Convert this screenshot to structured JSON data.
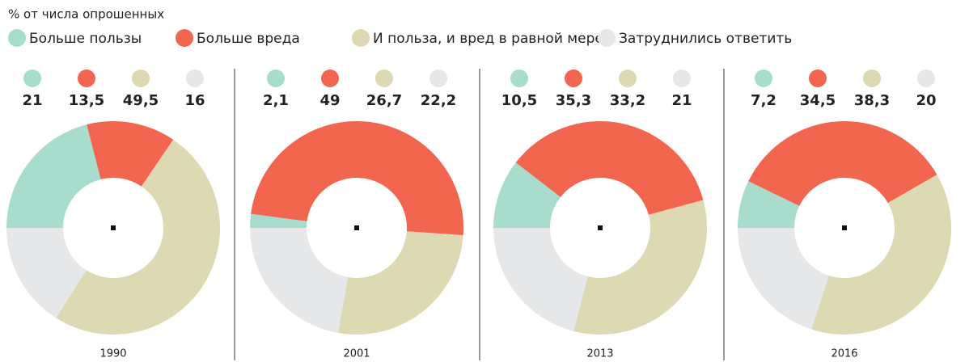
{
  "note": "% от числа опрошенных",
  "legend": [
    {
      "name": "Больше пользы",
      "color": "#a8dccd"
    },
    {
      "name": "Больше вреда",
      "color": "#f26650"
    },
    {
      "name": "И польза, и вред в равной мере",
      "color": "#ddd9b2"
    },
    {
      "name": "Затруднились ответить",
      "color": "#e6e7e9"
    }
  ],
  "chart_data": [
    {
      "type": "donut",
      "title": "1990",
      "values": [
        21,
        13.5,
        49.5,
        16
      ],
      "value_labels": [
        "21",
        "13,5",
        "49,5",
        "16"
      ]
    },
    {
      "type": "donut",
      "title": "2001",
      "values": [
        2.1,
        49,
        26.7,
        22.2
      ],
      "value_labels": [
        "2,1",
        "49",
        "26,7",
        "22,2"
      ]
    },
    {
      "type": "donut",
      "title": "2013",
      "values": [
        10.5,
        35.3,
        33.2,
        21
      ],
      "value_labels": [
        "10,5",
        "35,3",
        "33,2",
        "21"
      ]
    },
    {
      "type": "donut",
      "title": "2016",
      "values": [
        7.2,
        34.5,
        38.3,
        20
      ],
      "value_labels": [
        "7,2",
        "34,5",
        "38,3",
        "20"
      ]
    }
  ]
}
